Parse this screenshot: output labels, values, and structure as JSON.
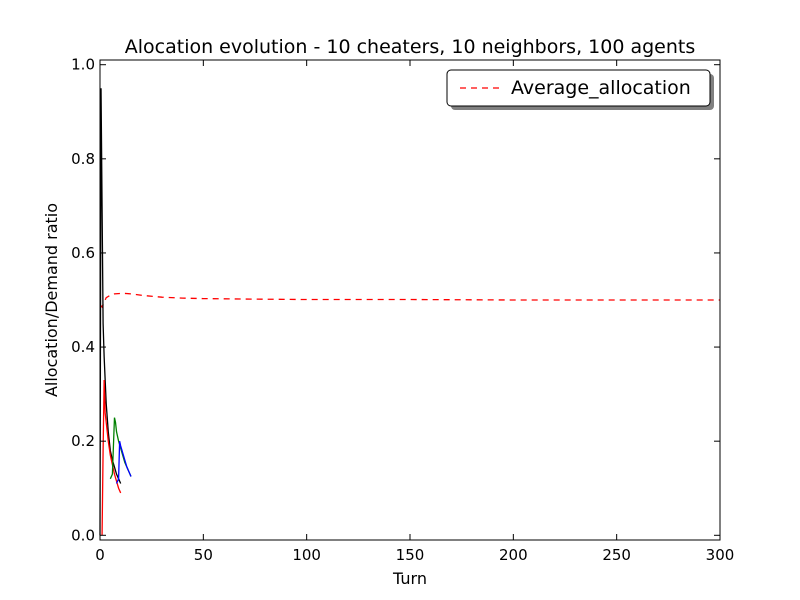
{
  "chart_data": {
    "type": "line",
    "title": "Alocation evolution - 10 cheaters, 10 neighbors, 100 agents",
    "xlabel": "Turn",
    "ylabel": "Allocation/Demand ratio",
    "xlim": [
      0,
      300
    ],
    "ylim": [
      -0.01,
      1.01
    ],
    "xticks": [
      0,
      50,
      100,
      150,
      200,
      250,
      300
    ],
    "yticks": [
      0.0,
      0.2,
      0.4,
      0.6,
      0.8,
      1.0
    ],
    "xtick_labels": [
      "0",
      "50",
      "100",
      "150",
      "200",
      "250",
      "300"
    ],
    "ytick_labels": [
      "0.0",
      "0.2",
      "0.4",
      "0.6",
      "0.8",
      "1.0"
    ],
    "grid": false,
    "legend": {
      "position": "top-right",
      "entries": [
        "Average_allocation"
      ]
    },
    "series": [
      {
        "name": "Average_allocation",
        "color": "#ff0000",
        "style": "dashed",
        "x": [
          0,
          1,
          2,
          3,
          5,
          7,
          10,
          12,
          15,
          20,
          25,
          30,
          40,
          50,
          70,
          100,
          150,
          200,
          250,
          300
        ],
        "y": [
          0.49,
          0.485,
          0.495,
          0.505,
          0.51,
          0.513,
          0.514,
          0.514,
          0.513,
          0.51,
          0.508,
          0.506,
          0.504,
          0.503,
          0.502,
          0.501,
          0.501,
          0.5,
          0.5,
          0.5
        ]
      },
      {
        "color": "#000000",
        "style": "solid",
        "x": [
          0,
          0.5,
          1,
          1.5,
          2,
          3,
          4,
          5,
          6,
          7,
          8,
          9,
          10
        ],
        "y": [
          0.0,
          0.95,
          0.7,
          0.45,
          0.38,
          0.28,
          0.22,
          0.18,
          0.16,
          0.145,
          0.13,
          0.12,
          0.11
        ]
      },
      {
        "color": "#ff0000",
        "style": "solid",
        "x": [
          1,
          1.5,
          2,
          2.5,
          3,
          4,
          5,
          6,
          7,
          8,
          9,
          10
        ],
        "y": [
          0.0,
          0.18,
          0.33,
          0.26,
          0.24,
          0.2,
          0.17,
          0.15,
          0.13,
          0.115,
          0.1,
          0.09
        ]
      },
      {
        "color": "#008000",
        "style": "solid",
        "x": [
          5,
          6,
          7,
          7.5,
          8,
          9,
          10,
          11,
          12,
          13,
          14,
          15
        ],
        "y": [
          0.12,
          0.13,
          0.25,
          0.24,
          0.22,
          0.2,
          0.185,
          0.17,
          0.155,
          0.145,
          0.135,
          0.125
        ]
      },
      {
        "color": "#0000ff",
        "style": "solid",
        "x": [
          8,
          9,
          9.5,
          10,
          11,
          12,
          13,
          14,
          15
        ],
        "y": [
          0.11,
          0.12,
          0.2,
          0.19,
          0.175,
          0.16,
          0.145,
          0.135,
          0.125
        ]
      }
    ]
  }
}
